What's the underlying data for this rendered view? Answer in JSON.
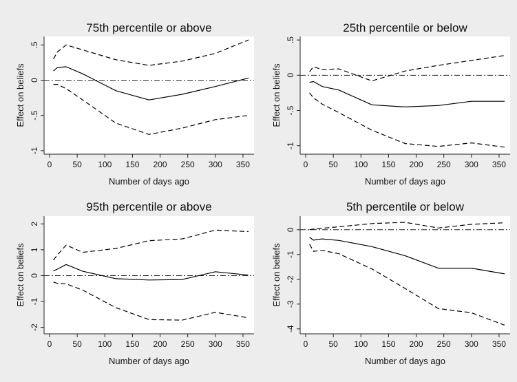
{
  "chart_data": [
    {
      "type": "line",
      "title": "75th percentile or above",
      "xlabel": "Number of days ago",
      "ylabel": "Effect on beliefs",
      "xlim": [
        -10,
        370
      ],
      "ylim": [
        -1.05,
        0.62
      ],
      "xticks": [
        0,
        50,
        100,
        150,
        200,
        250,
        300,
        350
      ],
      "yticks": [
        -1,
        -0.5,
        0,
        0.5
      ],
      "ytick_labels": [
        "-1",
        "-.5",
        "0",
        ".5"
      ],
      "reference_line": 0,
      "x": [
        7,
        14,
        30,
        60,
        120,
        180,
        240,
        300,
        360
      ],
      "series": [
        {
          "style": "solid",
          "values": [
            0.13,
            0.18,
            0.19,
            0.09,
            -0.15,
            -0.28,
            -0.2,
            -0.09,
            0.03
          ]
        },
        {
          "style": "dashed",
          "values": [
            0.3,
            0.4,
            0.5,
            0.43,
            0.29,
            0.21,
            0.27,
            0.38,
            0.57
          ]
        },
        {
          "style": "dashed",
          "values": [
            -0.06,
            -0.06,
            -0.12,
            -0.28,
            -0.61,
            -0.77,
            -0.68,
            -0.56,
            -0.5
          ]
        }
      ]
    },
    {
      "type": "line",
      "title": "25th percentile or below",
      "xlabel": "Number of days ago",
      "ylabel": "Effect on beliefs",
      "xlim": [
        -10,
        370
      ],
      "ylim": [
        -1.12,
        0.55
      ],
      "xticks": [
        0,
        50,
        100,
        150,
        200,
        250,
        300,
        350
      ],
      "yticks": [
        -1,
        -0.5,
        0,
        0.5
      ],
      "ytick_labels": [
        "-1",
        "-.5",
        "0",
        ".5"
      ],
      "reference_line": 0,
      "x": [
        7,
        14,
        30,
        60,
        120,
        180,
        240,
        300,
        360
      ],
      "series": [
        {
          "style": "solid",
          "values": [
            -0.1,
            -0.09,
            -0.16,
            -0.21,
            -0.42,
            -0.45,
            -0.43,
            -0.37,
            -0.37
          ]
        },
        {
          "style": "dashed",
          "values": [
            0.05,
            0.12,
            0.08,
            0.09,
            -0.08,
            0.06,
            0.14,
            0.21,
            0.28
          ]
        },
        {
          "style": "dashed",
          "values": [
            -0.25,
            -0.32,
            -0.41,
            -0.53,
            -0.78,
            -0.97,
            -1.01,
            -0.96,
            -1.02
          ]
        }
      ]
    },
    {
      "type": "line",
      "title": "95th percentile or above",
      "xlabel": "Number of days ago",
      "ylabel": "Effect on beliefs",
      "xlim": [
        -10,
        370
      ],
      "ylim": [
        -2.25,
        2.3
      ],
      "xticks": [
        0,
        50,
        100,
        150,
        200,
        250,
        300,
        350
      ],
      "yticks": [
        -2,
        -1,
        0,
        1,
        2
      ],
      "ytick_labels": [
        "-2",
        "-1",
        "0",
        "1",
        "2"
      ],
      "reference_line": 0,
      "x": [
        7,
        14,
        30,
        60,
        120,
        180,
        240,
        300,
        360
      ],
      "series": [
        {
          "style": "solid",
          "values": [
            0.18,
            0.25,
            0.43,
            0.17,
            -0.12,
            -0.17,
            -0.15,
            0.15,
            0.02
          ]
        },
        {
          "style": "dashed",
          "values": [
            0.6,
            0.8,
            1.18,
            0.9,
            1.05,
            1.35,
            1.42,
            1.76,
            1.7
          ]
        },
        {
          "style": "dashed",
          "values": [
            -0.25,
            -0.3,
            -0.32,
            -0.56,
            -1.24,
            -1.7,
            -1.72,
            -1.42,
            -1.63
          ]
        }
      ]
    },
    {
      "type": "line",
      "title": "5th percentile or below",
      "xlabel": "Number of days ago",
      "ylabel": "Effect on beliefs",
      "xlim": [
        -10,
        370
      ],
      "ylim": [
        -4.2,
        0.55
      ],
      "xticks": [
        0,
        50,
        100,
        150,
        200,
        250,
        300,
        350
      ],
      "yticks": [
        -4,
        -3,
        -2,
        -1,
        0
      ],
      "ytick_labels": [
        "-4",
        "-3",
        "-2",
        "-1",
        "0"
      ],
      "reference_line": 0,
      "x": [
        7,
        14,
        30,
        60,
        120,
        180,
        240,
        300,
        360
      ],
      "series": [
        {
          "style": "solid",
          "values": [
            -0.3,
            -0.42,
            -0.37,
            -0.43,
            -0.68,
            -1.05,
            -1.55,
            -1.55,
            -1.78
          ]
        },
        {
          "style": "dashed",
          "values": [
            0.0,
            0.03,
            0.06,
            0.12,
            0.25,
            0.3,
            0.07,
            0.22,
            0.28
          ]
        },
        {
          "style": "dashed",
          "values": [
            -0.58,
            -0.87,
            -0.83,
            -0.97,
            -1.58,
            -2.37,
            -3.18,
            -3.35,
            -3.85
          ]
        }
      ]
    }
  ]
}
